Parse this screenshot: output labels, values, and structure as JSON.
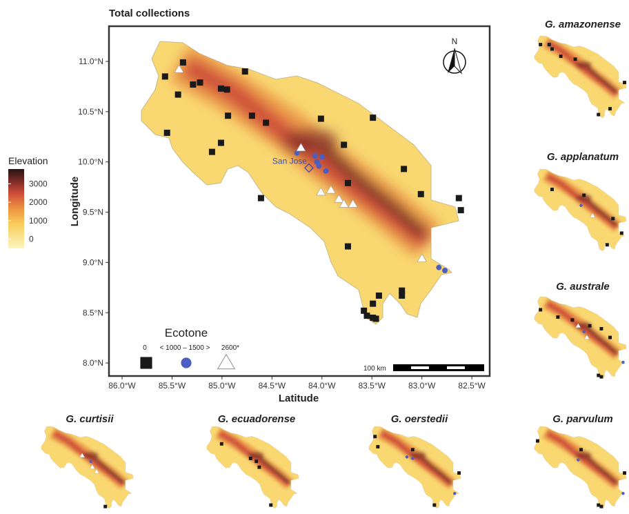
{
  "title": "Total collections",
  "x_label": "Latitude",
  "y_label": "Longitude",
  "north": "N",
  "scale_bar": "100 km",
  "xticks": [
    {
      "value": -86.0,
      "label": "86.0°W"
    },
    {
      "value": -85.5,
      "label": "85.5°W"
    },
    {
      "value": -85.0,
      "label": "85.0°W"
    },
    {
      "value": -84.5,
      "label": "84.5°W"
    },
    {
      "value": -84.0,
      "label": "84.0°W"
    },
    {
      "value": -83.5,
      "label": "83.5°W"
    },
    {
      "value": -83.0,
      "label": "83.0°W"
    },
    {
      "value": -82.5,
      "label": "82.5°W"
    }
  ],
  "yticks": [
    {
      "value": 8.0,
      "label": "8.0°N"
    },
    {
      "value": 8.5,
      "label": "8.5°N"
    },
    {
      "value": 9.0,
      "label": "9.0°N"
    },
    {
      "value": 9.5,
      "label": "9.5°N"
    },
    {
      "value": 10.0,
      "label": "10.0°N"
    },
    {
      "value": 10.5,
      "label": "10.5°N"
    },
    {
      "value": 11.0,
      "label": "11.0°N"
    }
  ],
  "elevation_legend": {
    "title": "Elevation",
    "lim": [
      -500,
      3800
    ],
    "ticks": [
      0,
      1000,
      2000,
      3000
    ]
  },
  "ecotone_legend": {
    "title": "Ecotone",
    "labels": [
      "0",
      "< 1000 – 1500 >",
      "2600*"
    ]
  },
  "city": {
    "label": "San Jose",
    "lon": -84.13,
    "lat": 9.94
  },
  "points": [
    {
      "lon": -85.39,
      "lat": 10.99,
      "group": 0
    },
    {
      "lon": -85.57,
      "lat": 10.85,
      "group": 0
    },
    {
      "lon": -85.44,
      "lat": 10.67,
      "group": 0
    },
    {
      "lon": -85.29,
      "lat": 10.77,
      "group": 0
    },
    {
      "lon": -85.22,
      "lat": 10.79,
      "group": 0
    },
    {
      "lon": -85.01,
      "lat": 10.73,
      "group": 0
    },
    {
      "lon": -84.95,
      "lat": 10.72,
      "group": 0
    },
    {
      "lon": -84.77,
      "lat": 10.9,
      "group": 0
    },
    {
      "lon": -85.55,
      "lat": 10.29,
      "group": 0
    },
    {
      "lon": -84.94,
      "lat": 10.46,
      "group": 0
    },
    {
      "lon": -84.7,
      "lat": 10.46,
      "group": 0
    },
    {
      "lon": -84.56,
      "lat": 10.39,
      "group": 0
    },
    {
      "lon": -85.01,
      "lat": 10.19,
      "group": 0
    },
    {
      "lon": -85.1,
      "lat": 10.1,
      "group": 0
    },
    {
      "lon": -84.01,
      "lat": 10.43,
      "group": 0
    },
    {
      "lon": -83.49,
      "lat": 10.44,
      "group": 0
    },
    {
      "lon": -83.78,
      "lat": 10.17,
      "group": 0
    },
    {
      "lon": -83.74,
      "lat": 9.79,
      "group": 0
    },
    {
      "lon": -83.18,
      "lat": 9.93,
      "group": 0
    },
    {
      "lon": -83.01,
      "lat": 9.68,
      "group": 0
    },
    {
      "lon": -82.63,
      "lat": 9.64,
      "group": 0
    },
    {
      "lon": -82.61,
      "lat": 9.52,
      "group": 0
    },
    {
      "lon": -84.61,
      "lat": 9.64,
      "group": 0
    },
    {
      "lon": -83.74,
      "lat": 9.16,
      "group": 0
    },
    {
      "lon": -83.2,
      "lat": 8.72,
      "group": 0
    },
    {
      "lon": -83.2,
      "lat": 8.67,
      "group": 0
    },
    {
      "lon": -83.43,
      "lat": 8.67,
      "group": 0
    },
    {
      "lon": -83.58,
      "lat": 8.52,
      "group": 0
    },
    {
      "lon": -83.55,
      "lat": 8.47,
      "group": 0
    },
    {
      "lon": -83.49,
      "lat": 8.45,
      "group": 0
    },
    {
      "lon": -83.46,
      "lat": 8.44,
      "group": 0
    },
    {
      "lon": -83.49,
      "lat": 8.59,
      "group": 0
    },
    {
      "lon": -84.25,
      "lat": 10.09,
      "group": 1
    },
    {
      "lon": -84.07,
      "lat": 10.06,
      "group": 1
    },
    {
      "lon": -84.05,
      "lat": 10.0,
      "group": 1
    },
    {
      "lon": -84.0,
      "lat": 10.05,
      "group": 1
    },
    {
      "lon": -84.03,
      "lat": 9.96,
      "group": 1
    },
    {
      "lon": -83.96,
      "lat": 9.91,
      "group": 1
    },
    {
      "lon": -82.83,
      "lat": 8.95,
      "group": 1
    },
    {
      "lon": -82.77,
      "lat": 8.92,
      "group": 1
    },
    {
      "lon": -84.21,
      "lat": 10.14,
      "group": 2
    },
    {
      "lon": -84.01,
      "lat": 9.7,
      "group": 2
    },
    {
      "lon": -83.91,
      "lat": 9.72,
      "group": 2
    },
    {
      "lon": -83.83,
      "lat": 9.63,
      "group": 2
    },
    {
      "lon": -83.78,
      "lat": 9.58,
      "group": 2
    },
    {
      "lon": -83.69,
      "lat": 9.58,
      "group": 2
    },
    {
      "lon": -83.0,
      "lat": 9.04,
      "group": 2
    },
    {
      "lon": -85.43,
      "lat": 10.92,
      "group": 2
    }
  ],
  "species": [
    {
      "name": "G. amazonense",
      "points": [
        {
          "lon": -85.6,
          "lat": 10.9,
          "group": 0
        },
        {
          "lon": -85.3,
          "lat": 10.9,
          "group": 0
        },
        {
          "lon": -85.2,
          "lat": 10.75,
          "group": 0
        },
        {
          "lon": -84.9,
          "lat": 10.5,
          "group": 0
        },
        {
          "lon": -84.4,
          "lat": 10.4,
          "group": 0
        },
        {
          "lon": -82.7,
          "lat": 9.6,
          "group": 0
        },
        {
          "lon": -83.2,
          "lat": 8.7,
          "group": 0
        },
        {
          "lon": -83.6,
          "lat": 8.5,
          "group": 0
        }
      ]
    },
    {
      "name": "G. applanatum",
      "points": [
        {
          "lon": -85.2,
          "lat": 10.5,
          "group": 0
        },
        {
          "lon": -84.1,
          "lat": 10.3,
          "group": 0
        },
        {
          "lon": -83.1,
          "lat": 9.5,
          "group": 0
        },
        {
          "lon": -82.8,
          "lat": 9.0,
          "group": 0
        },
        {
          "lon": -83.3,
          "lat": 8.6,
          "group": 0
        },
        {
          "lon": -84.2,
          "lat": 9.95,
          "group": 1
        },
        {
          "lon": -83.8,
          "lat": 9.6,
          "group": 2
        }
      ]
    },
    {
      "name": "G. australe",
      "points": [
        {
          "lon": -85.6,
          "lat": 10.75,
          "group": 0
        },
        {
          "lon": -85.0,
          "lat": 10.5,
          "group": 0
        },
        {
          "lon": -84.5,
          "lat": 10.4,
          "group": 0
        },
        {
          "lon": -83.9,
          "lat": 10.2,
          "group": 0
        },
        {
          "lon": -83.5,
          "lat": 10.1,
          "group": 0
        },
        {
          "lon": -83.2,
          "lat": 9.8,
          "group": 0
        },
        {
          "lon": -83.6,
          "lat": 8.5,
          "group": 0
        },
        {
          "lon": -83.5,
          "lat": 8.45,
          "group": 0
        },
        {
          "lon": -84.1,
          "lat": 10.0,
          "group": 1
        },
        {
          "lon": -82.75,
          "lat": 8.95,
          "group": 1
        },
        {
          "lon": -84.3,
          "lat": 10.2,
          "group": 2
        },
        {
          "lon": -84.0,
          "lat": 9.8,
          "group": 2
        }
      ]
    },
    {
      "name": "G. curtisii",
      "points": [
        {
          "lon": -83.6,
          "lat": 8.45,
          "group": 0
        },
        {
          "lon": -84.1,
          "lat": 10.0,
          "group": 1
        },
        {
          "lon": -84.4,
          "lat": 10.2,
          "group": 2
        },
        {
          "lon": -84.05,
          "lat": 9.8,
          "group": 2
        },
        {
          "lon": -83.9,
          "lat": 9.65,
          "group": 2
        }
      ]
    },
    {
      "name": "G. ecuadorense",
      "points": [
        {
          "lon": -85.3,
          "lat": 10.6,
          "group": 0
        },
        {
          "lon": -84.3,
          "lat": 10.1,
          "group": 0
        },
        {
          "lon": -84.1,
          "lat": 10.0,
          "group": 0
        },
        {
          "lon": -84.0,
          "lat": 9.8,
          "group": 0
        },
        {
          "lon": -83.6,
          "lat": 8.5,
          "group": 0
        }
      ]
    },
    {
      "name": "G. oerstedii",
      "points": [
        {
          "lon": -85.6,
          "lat": 10.85,
          "group": 0
        },
        {
          "lon": -85.5,
          "lat": 10.5,
          "group": 0
        },
        {
          "lon": -84.3,
          "lat": 10.4,
          "group": 0
        },
        {
          "lon": -82.7,
          "lat": 9.6,
          "group": 0
        },
        {
          "lon": -83.55,
          "lat": 8.5,
          "group": 0
        },
        {
          "lon": -84.5,
          "lat": 10.15,
          "group": 1
        },
        {
          "lon": -84.3,
          "lat": 10.1,
          "group": 1
        },
        {
          "lon": -82.85,
          "lat": 8.9,
          "group": 1
        }
      ]
    },
    {
      "name": "G. parvulum",
      "points": [
        {
          "lon": -85.7,
          "lat": 10.7,
          "group": 0
        },
        {
          "lon": -84.2,
          "lat": 10.4,
          "group": 0
        },
        {
          "lon": -82.7,
          "lat": 9.6,
          "group": 0
        },
        {
          "lon": -83.6,
          "lat": 8.5,
          "group": 0
        },
        {
          "lon": -83.5,
          "lat": 8.45,
          "group": 0
        },
        {
          "lon": -84.3,
          "lat": 10.05,
          "group": 1
        },
        {
          "lon": -82.75,
          "lat": 8.9,
          "group": 1
        }
      ]
    }
  ]
}
